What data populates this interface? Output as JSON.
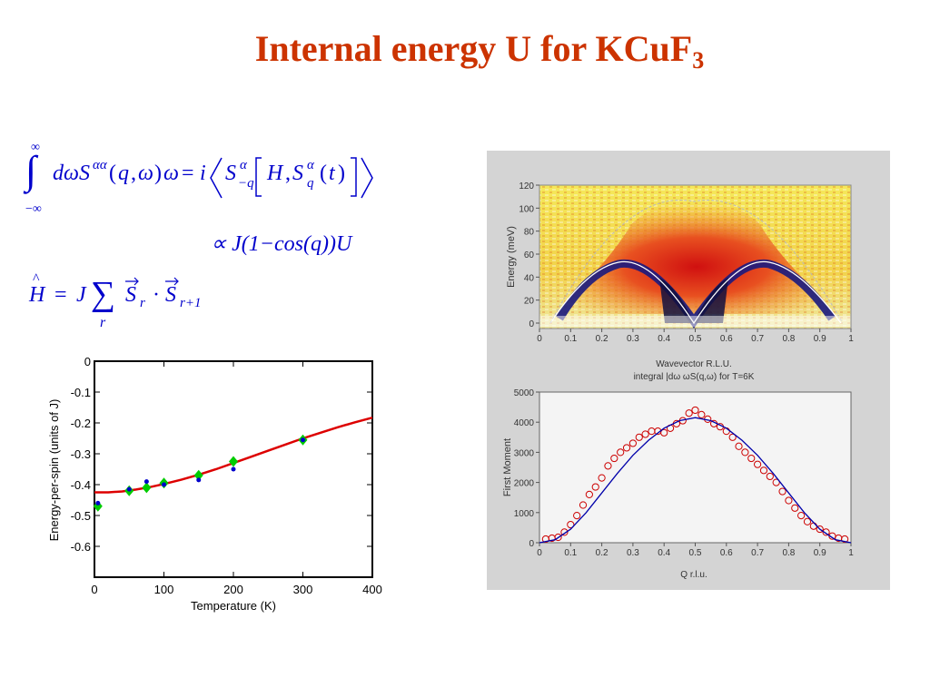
{
  "title": {
    "main": "Internal energy U for KCuF",
    "sub": "3"
  },
  "equations": {
    "eq2_text": "∝ J(1−cos(q))U"
  },
  "chart_data": [
    {
      "type": "scatter",
      "title": "",
      "xlabel": "Temperature (K)",
      "ylabel": "Energy-per-spin (units of J)",
      "xlim": [
        0,
        400
      ],
      "ylim": [
        -0.7,
        0
      ],
      "xticks": [
        "0",
        "100",
        "200",
        "300",
        "400"
      ],
      "yticks": [
        "0",
        "-0.1",
        "-0.2",
        "-0.3",
        "-0.4",
        "-0.5",
        "-0.6"
      ],
      "series": [
        {
          "color": "#00cc00",
          "marker": "diamond",
          "x": [
            5,
            50,
            75,
            100,
            150,
            200,
            300
          ],
          "y": [
            -0.47,
            -0.42,
            -0.41,
            -0.395,
            -0.37,
            -0.325,
            -0.255
          ]
        },
        {
          "color": "#0000cc",
          "marker": "dot",
          "x": [
            5,
            50,
            75,
            100,
            150,
            200,
            300
          ],
          "y": [
            -0.46,
            -0.415,
            -0.39,
            -0.4,
            -0.385,
            -0.35,
            -0.255
          ]
        },
        {
          "color": "#dd0000",
          "marker": "line",
          "x": [
            0,
            20,
            40,
            60,
            80,
            100,
            125,
            150,
            175,
            200,
            225,
            250,
            275,
            300,
            325,
            350,
            375,
            400
          ],
          "y": [
            -0.425,
            -0.425,
            -0.422,
            -0.416,
            -0.408,
            -0.398,
            -0.384,
            -0.368,
            -0.35,
            -0.33,
            -0.31,
            -0.29,
            -0.27,
            -0.25,
            -0.232,
            -0.214,
            -0.198,
            -0.183
          ]
        }
      ]
    },
    {
      "type": "heatmap",
      "xlabel": "Wavevector R.L.U.",
      "ylabel": "Energy (meV)",
      "xlim": [
        0,
        1
      ],
      "ylim": [
        0,
        120
      ],
      "xticks": [
        "0",
        "0.1",
        "0.2",
        "0.3",
        "0.4",
        "0.5",
        "0.6",
        "0.7",
        "0.8",
        "0.9",
        "1"
      ],
      "yticks": [
        "0",
        "20",
        "40",
        "60",
        "80",
        "100",
        "120"
      ]
    },
    {
      "type": "scatter",
      "title": "integral |dω ωS(q,ω) for T=6K",
      "xlabel": "Q r.l.u.",
      "ylabel": "First Moment",
      "xlim": [
        0,
        1
      ],
      "ylim": [
        0,
        5000
      ],
      "xticks": [
        "0",
        "0.1",
        "0.2",
        "0.3",
        "0.4",
        "0.5",
        "0.6",
        "0.7",
        "0.8",
        "0.9",
        "1"
      ],
      "yticks": [
        "0",
        "1000",
        "2000",
        "3000",
        "4000",
        "5000"
      ],
      "series": [
        {
          "color": "#cc0000",
          "marker": "circle",
          "x": [
            0.02,
            0.04,
            0.06,
            0.08,
            0.1,
            0.12,
            0.14,
            0.16,
            0.18,
            0.2,
            0.22,
            0.24,
            0.26,
            0.28,
            0.3,
            0.32,
            0.34,
            0.36,
            0.38,
            0.4,
            0.42,
            0.44,
            0.46,
            0.48,
            0.5,
            0.52,
            0.54,
            0.56,
            0.58,
            0.6,
            0.62,
            0.64,
            0.66,
            0.68,
            0.7,
            0.72,
            0.74,
            0.76,
            0.78,
            0.8,
            0.82,
            0.84,
            0.86,
            0.88,
            0.9,
            0.92,
            0.94,
            0.96,
            0.98
          ],
          "y": [
            120,
            150,
            180,
            350,
            600,
            900,
            1250,
            1600,
            1850,
            2150,
            2550,
            2800,
            3000,
            3150,
            3300,
            3500,
            3600,
            3700,
            3700,
            3650,
            3800,
            3950,
            4050,
            4300,
            4400,
            4250,
            4100,
            3950,
            3850,
            3700,
            3500,
            3200,
            3000,
            2800,
            2600,
            2400,
            2200,
            2000,
            1700,
            1400,
            1150,
            900,
            700,
            550,
            450,
            350,
            220,
            150,
            120
          ]
        },
        {
          "color": "#0000aa",
          "marker": "line",
          "x": [
            0,
            0.05,
            0.1,
            0.15,
            0.2,
            0.25,
            0.3,
            0.35,
            0.4,
            0.45,
            0.5,
            0.55,
            0.6,
            0.65,
            0.7,
            0.75,
            0.8,
            0.85,
            0.9,
            0.95,
            1.0
          ],
          "y": [
            0,
            100,
            450,
            1000,
            1650,
            2300,
            2900,
            3400,
            3800,
            4050,
            4150,
            4050,
            3800,
            3400,
            2900,
            2300,
            1650,
            1000,
            450,
            100,
            0
          ]
        }
      ]
    }
  ]
}
